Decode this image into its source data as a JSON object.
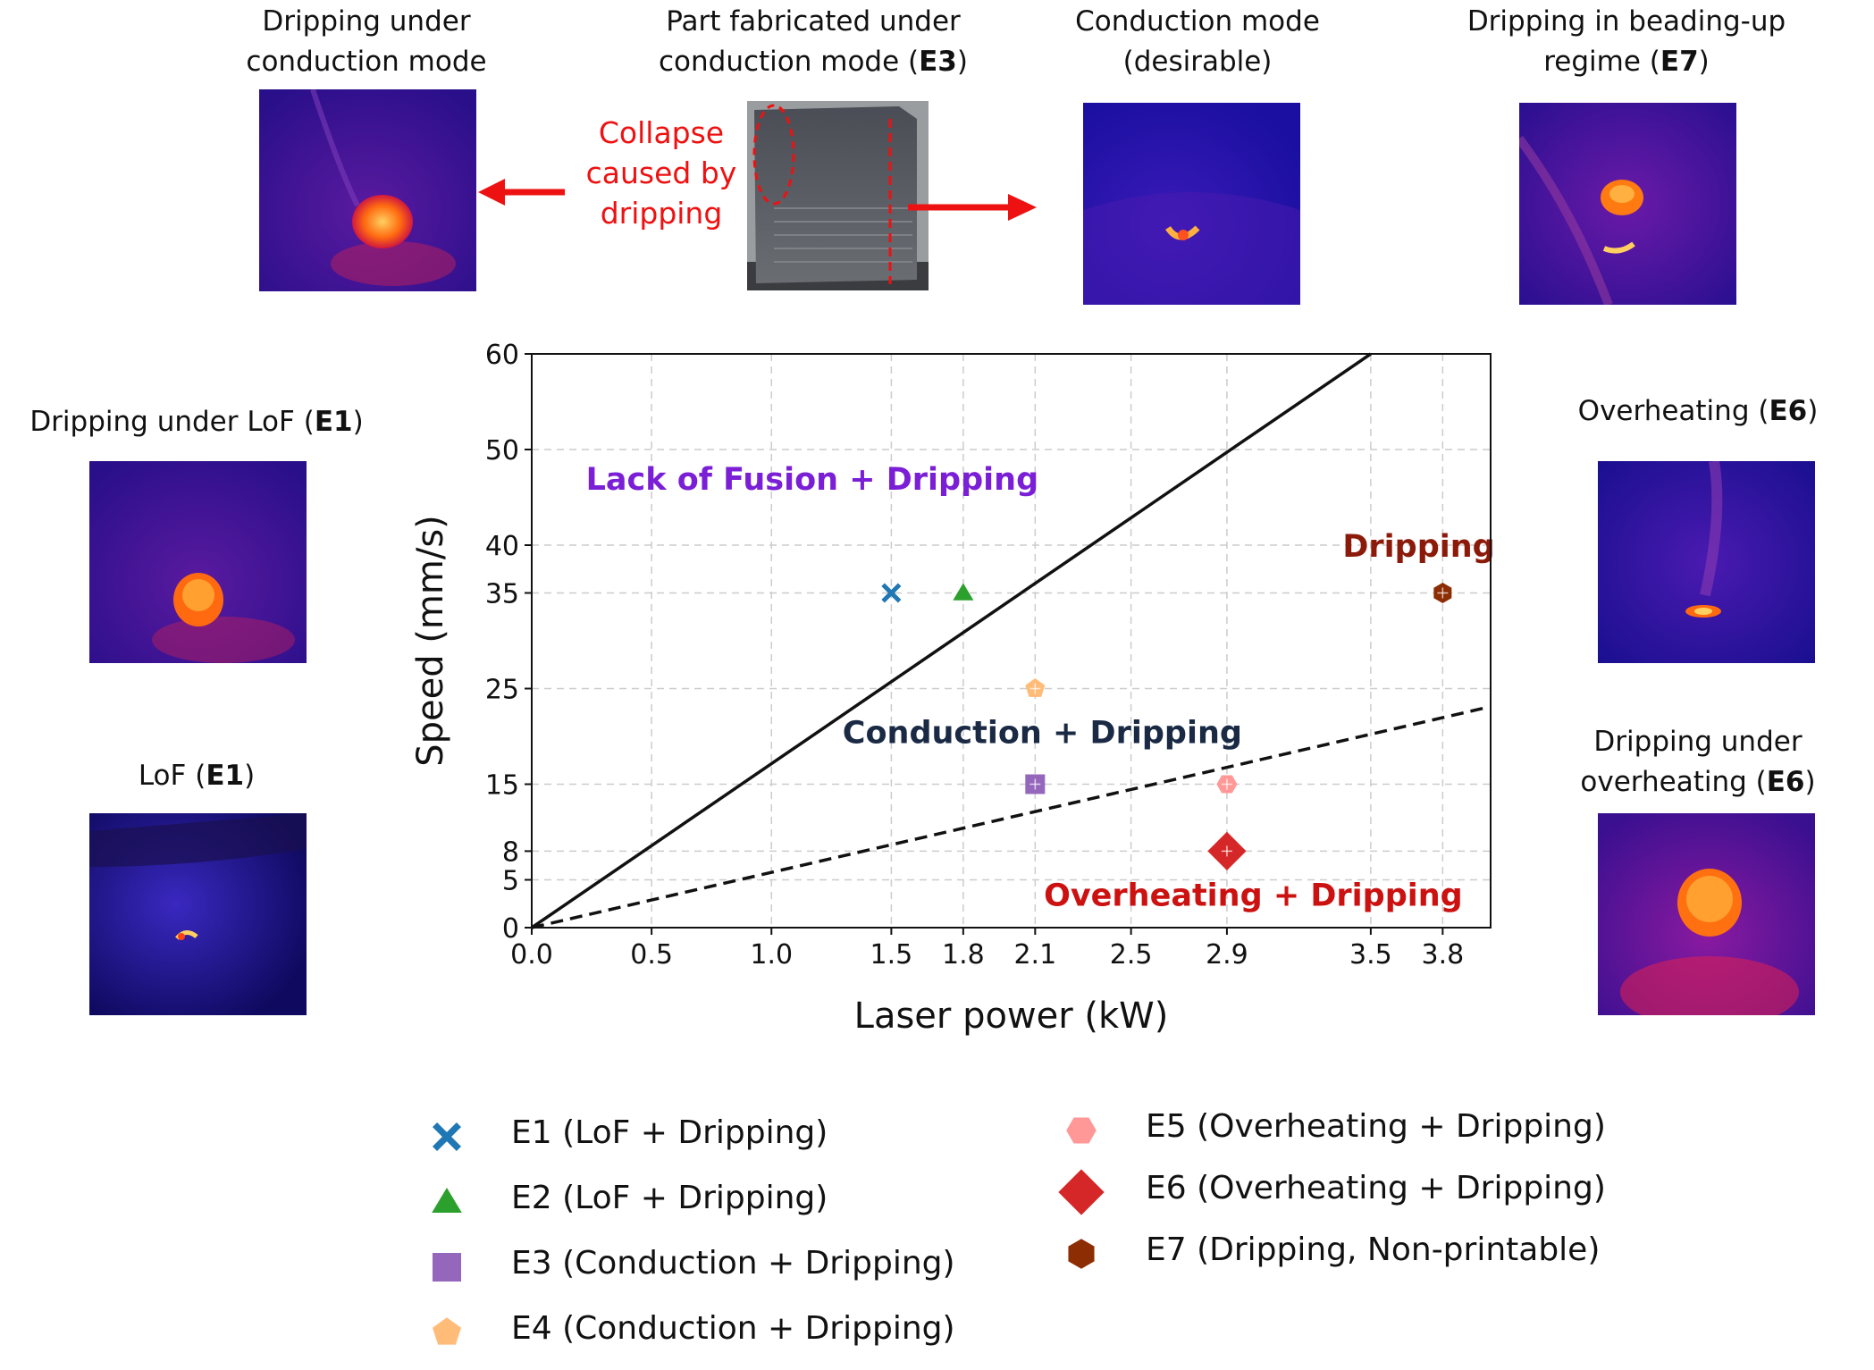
{
  "panels": {
    "drip_conduction": {
      "line1": "Dripping under",
      "line2": "conduction mode"
    },
    "part_e3": {
      "line1": "Part fabricated under",
      "line2_pre": "conduction mode (",
      "line2_bold": "E3",
      "line2_post": ")"
    },
    "collapse_note": {
      "line1": "Collapse",
      "line2": "caused by",
      "line3": "dripping"
    },
    "conduction_desirable": {
      "line1": "Conduction mode",
      "line2": "(desirable)"
    },
    "drip_beading": {
      "line1": "Dripping in beading-up",
      "line2_pre": "regime (",
      "line2_bold": "E7",
      "line2_post": ")"
    },
    "drip_lof": {
      "line1_pre": "Dripping under LoF (",
      "line1_bold": "E1",
      "line1_post": ")"
    },
    "lof": {
      "line1_pre": "LoF (",
      "line1_bold": "E1",
      "line1_post": ")"
    },
    "overheating": {
      "line1_pre": "Overheating (",
      "line1_bold": "E6",
      "line1_post": ")"
    },
    "drip_overheating": {
      "line1": "Dripping under",
      "line2_pre": "overheating (",
      "line2_bold": "E6",
      "line2_post": ")"
    }
  },
  "colors": {
    "e1": "#1f77b4",
    "e2": "#2ca02c",
    "e3": "#9467bd",
    "e4": "#ffbb78",
    "e5": "#ff9896",
    "e6": "#d62728",
    "e7": "#8c2d04",
    "region_lof": "#7a1fd6",
    "region_conduction": "#1a2a44",
    "region_overheating": "#cc1111",
    "region_dripping": "#8b1a0a",
    "arrow": "#ee1111"
  },
  "chart_data": {
    "type": "scatter",
    "xlabel": "Laser power (kW)",
    "ylabel": "Speed (mm/s)",
    "xlim": [
      0,
      4.0
    ],
    "ylim": [
      0,
      60
    ],
    "xticks": [
      0.0,
      0.5,
      1.0,
      1.5,
      1.8,
      2.1,
      2.5,
      2.9,
      3.5,
      3.8
    ],
    "xtick_labels": [
      "0.0",
      "0.5",
      "1.0",
      "1.5",
      "1.8",
      "2.1",
      "2.5",
      "2.9",
      "3.5",
      "3.8"
    ],
    "yticks": [
      0,
      5,
      8,
      15,
      25,
      35,
      40,
      50,
      60
    ],
    "ytick_labels": [
      "0",
      "5",
      "8",
      "15",
      "25",
      "35",
      "40",
      "50",
      "60"
    ],
    "grid": true,
    "boundary_lines": [
      {
        "style": "solid",
        "points": [
          [
            0,
            0
          ],
          [
            3.5,
            60
          ]
        ]
      },
      {
        "style": "dashed",
        "points": [
          [
            0,
            0
          ],
          [
            3.98,
            23
          ]
        ]
      }
    ],
    "region_labels": [
      {
        "text": "Lack of Fusion + Dripping",
        "x": 1.17,
        "y": 47,
        "color_key": "region_lof"
      },
      {
        "text": "Conduction + Dripping",
        "x": 2.13,
        "y": 20.5,
        "color_key": "region_conduction"
      },
      {
        "text": "Overheating + Dripping",
        "x": 3.01,
        "y": 3.5,
        "color_key": "region_overheating"
      },
      {
        "text": "Dripping",
        "x": 3.7,
        "y": 40,
        "color_key": "region_dripping"
      }
    ],
    "series": [
      {
        "name": "E1 (LoF + Dripping)",
        "marker": "x",
        "color_key": "e1",
        "x": 1.5,
        "y": 35
      },
      {
        "name": "E2 (LoF + Dripping)",
        "marker": "triangle",
        "color_key": "e2",
        "x": 1.8,
        "y": 35
      },
      {
        "name": "E3 (Conduction + Dripping)",
        "marker": "square",
        "color_key": "e3",
        "x": 2.1,
        "y": 15
      },
      {
        "name": "E4 (Conduction + Dripping)",
        "marker": "pentagon",
        "color_key": "e4",
        "x": 2.1,
        "y": 25
      },
      {
        "name": "E5 (Overheating + Dripping)",
        "marker": "hexagon-wide",
        "color_key": "e5",
        "x": 2.9,
        "y": 15
      },
      {
        "name": "E6 (Overheating + Dripping)",
        "marker": "diamond",
        "color_key": "e6",
        "x": 2.9,
        "y": 8
      },
      {
        "name": "E7 (Dripping, Non-printable)",
        "marker": "hexagon",
        "color_key": "e7",
        "x": 3.8,
        "y": 35
      }
    ]
  }
}
